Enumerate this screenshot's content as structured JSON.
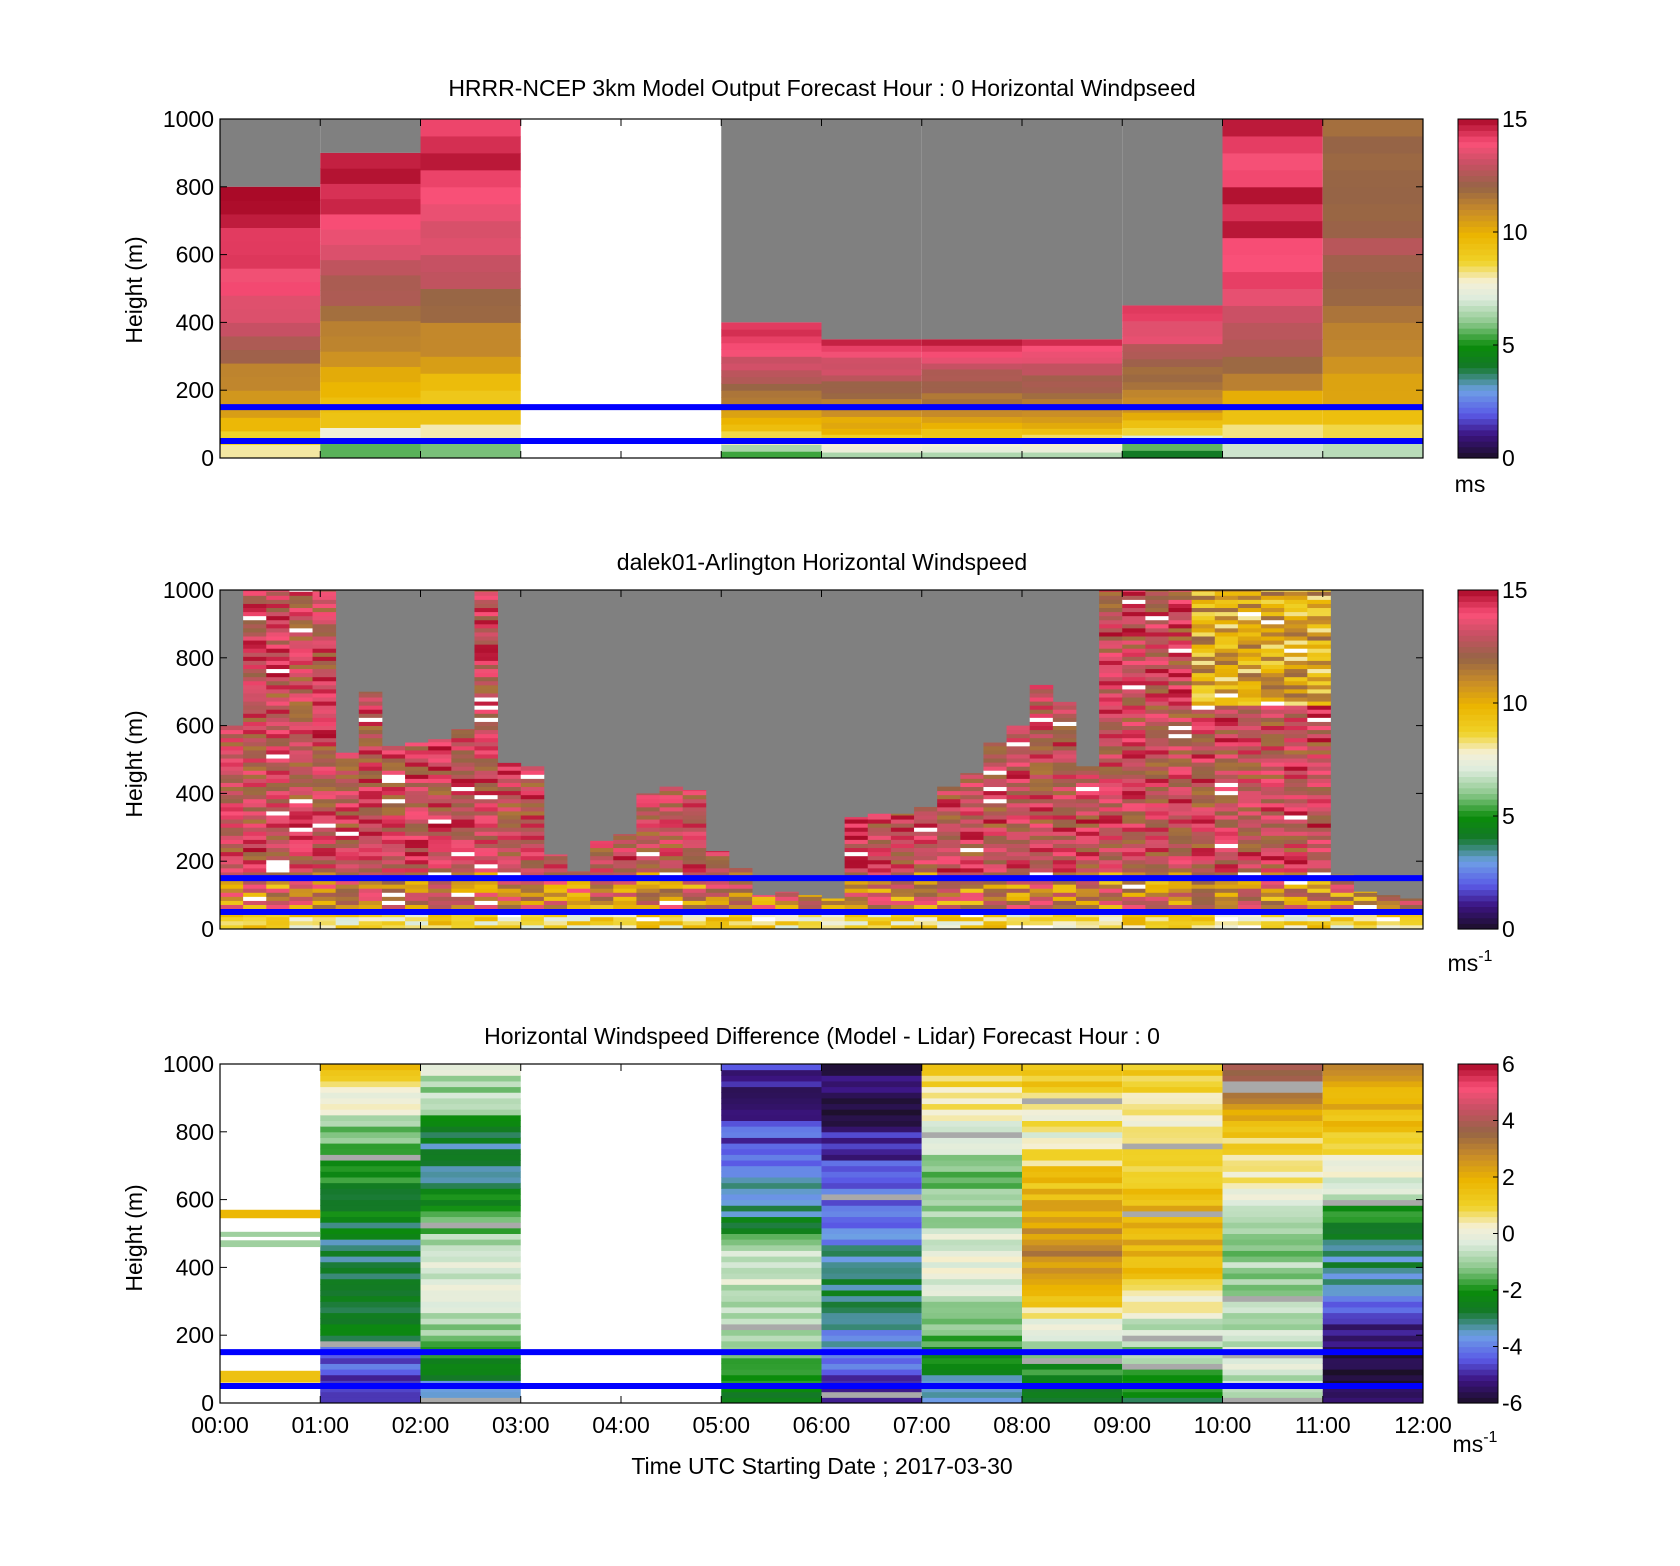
{
  "figure": {
    "x_tick_labels": [
      "00:00",
      "01:00",
      "02:00",
      "03:00",
      "04:00",
      "05:00",
      "06:00",
      "07:00",
      "08:00",
      "09:00",
      "10:00",
      "11:00",
      "12:00"
    ],
    "xlabel": "Time UTC  Starting Date ; 2017-03-30"
  },
  "chart_data": [
    {
      "type": "heatmap",
      "title": "HRRR-NCEP 3km Model Output   Forecast Hour : 0 Horizontal Windpseed",
      "ylabel": "Height (m)",
      "y_ticks": [
        0,
        200,
        400,
        600,
        800,
        1000
      ],
      "ylim": [
        0,
        1000
      ],
      "x_range_hours": [
        0,
        12
      ],
      "colorbar": {
        "range": [
          0,
          15
        ],
        "ticks": [
          0,
          5,
          10,
          15
        ],
        "unit": "ms",
        "unit_sup": ""
      },
      "reference_lines_m": [
        50,
        150
      ],
      "reference_line_color": "#0000ff",
      "missing_color": "#808080",
      "columns_hourly": [
        {
          "start": 0,
          "end": 1,
          "top_m": 800,
          "profile": [
            7.5,
            9.5,
            10.5,
            11.5,
            12.5,
            13.5,
            14.0,
            14.5,
            14.5,
            15.0
          ]
        },
        {
          "start": 1,
          "end": 2,
          "top_m": 900,
          "profile": [
            5.0,
            9.0,
            10.0,
            10.5,
            11.5,
            12.5,
            13.5,
            14.0,
            14.5,
            15.0
          ]
        },
        {
          "start": 2,
          "end": 3,
          "top_m": 1000,
          "profile": [
            5.0,
            9.0,
            9.5,
            11.0,
            12.0,
            13.0,
            13.5,
            14.0,
            14.5,
            14.5
          ]
        },
        {
          "start": 3,
          "end": 5,
          "top_m": null,
          "profile": []
        },
        {
          "start": 5,
          "end": 6,
          "top_m": 400,
          "profile": [
            5.0,
            9.5,
            11.0,
            12.5,
            14.0,
            14.5
          ]
        },
        {
          "start": 6,
          "end": 7,
          "top_m": 350,
          "profile": [
            6.0,
            10.0,
            11.5,
            13.0,
            14.5
          ]
        },
        {
          "start": 7,
          "end": 8,
          "top_m": 350,
          "profile": [
            6.0,
            10.0,
            11.5,
            13.0,
            14.5
          ]
        },
        {
          "start": 8,
          "end": 9,
          "top_m": 350,
          "profile": [
            6.0,
            10.0,
            11.5,
            13.0,
            14.5
          ]
        },
        {
          "start": 9,
          "end": 10,
          "top_m": 450,
          "profile": [
            3.5,
            9.5,
            11.0,
            12.0,
            13.5,
            14.5
          ]
        },
        {
          "start": 10,
          "end": 11,
          "top_m": 1000,
          "profile": [
            6.5,
            9.5,
            11.0,
            12.5,
            13.5,
            14.0,
            14.5,
            14.5,
            14.0,
            14.5
          ]
        },
        {
          "start": 11,
          "end": 12,
          "top_m": 1000,
          "profile": [
            6.0,
            9.5,
            10.5,
            11.0,
            11.5,
            12.5,
            12.5,
            12.0,
            12.0,
            11.5
          ]
        }
      ]
    },
    {
      "type": "heatmap",
      "title": "dalek01-Arlington  Horizontal Windspeed",
      "ylabel": "Height (m)",
      "y_ticks": [
        0,
        200,
        400,
        600,
        800,
        1000
      ],
      "ylim": [
        0,
        1000
      ],
      "x_range_hours": [
        0,
        12
      ],
      "colorbar": {
        "range": [
          0,
          15
        ],
        "ticks": [
          0,
          5,
          10,
          15
        ],
        "unit": "ms",
        "unit_sup": "-1"
      },
      "reference_lines_m": [
        50,
        150
      ],
      "reference_line_color": "#0000ff",
      "missing_color": "#808080",
      "data_top_m": [
        600,
        1000,
        1000,
        1000,
        1000,
        520,
        700,
        540,
        550,
        560,
        590,
        1000,
        490,
        480,
        220,
        170,
        260,
        280,
        400,
        420,
        410,
        230,
        180,
        100,
        110,
        100,
        90,
        330,
        340,
        340,
        360,
        420,
        460,
        550,
        600,
        720,
        670,
        480,
        1000,
        1000,
        1000,
        1000,
        1000,
        1000,
        1000,
        1000,
        1000,
        1000,
        160,
        110,
        100,
        90
      ]
    },
    {
      "type": "heatmap",
      "title": "Horizontal Windspeed Difference (Model - Lidar) Forecast Hour : 0",
      "ylabel": "Height (m)",
      "y_ticks": [
        0,
        200,
        400,
        600,
        800,
        1000
      ],
      "ylim": [
        0,
        1000
      ],
      "x_range_hours": [
        0,
        12
      ],
      "colorbar": {
        "range": [
          -6,
          6
        ],
        "ticks": [
          -6,
          -4,
          -2,
          0,
          2,
          4,
          6
        ],
        "unit": "ms",
        "unit_sup": "-1"
      },
      "reference_lines_m": [
        50,
        150
      ],
      "reference_line_color": "#0000ff",
      "columns_hourly": [
        {
          "start": 0,
          "end": 1,
          "profile": null
        },
        {
          "start": 1,
          "end": 2,
          "profile": [
            -5.0,
            -4.5,
            -2.5,
            -3.0,
            -3.0,
            -2.5,
            -2.0,
            -1.5,
            0.0,
            1.5
          ]
        },
        {
          "start": 2,
          "end": 3,
          "profile": [
            -4.0,
            -2.5,
            -1.0,
            -0.5,
            -0.5,
            -2.0,
            -3.0,
            -3.0,
            -1.0,
            -0.5
          ]
        },
        {
          "start": 3,
          "end": 5,
          "profile": null
        },
        {
          "start": 5,
          "end": 6,
          "profile": [
            -2.5,
            -1.5,
            -0.5,
            -0.5,
            -0.5,
            -3.0,
            -3.5,
            -4.5,
            -5.0,
            -5.0
          ]
        },
        {
          "start": 6,
          "end": 7,
          "profile": [
            -5.5,
            -4.0,
            -3.5,
            -3.0,
            -3.5,
            -4.0,
            -4.5,
            -5.0,
            -5.5,
            -5.5
          ]
        },
        {
          "start": 7,
          "end": 8,
          "profile": [
            -4.0,
            -2.5,
            -1.5,
            -0.5,
            0.0,
            -1.0,
            -1.5,
            -0.5,
            0.5,
            1.0
          ]
        },
        {
          "start": 8,
          "end": 9,
          "profile": [
            -3.0,
            -2.0,
            -0.5,
            2.0,
            3.0,
            2.0,
            1.5,
            0.0,
            1.0,
            1.5
          ]
        },
        {
          "start": 9,
          "end": 10,
          "profile": [
            -2.5,
            -1.5,
            -0.5,
            1.0,
            2.0,
            2.0,
            1.5,
            0.0,
            0.5,
            1.5
          ]
        },
        {
          "start": 10,
          "end": 11,
          "profile": [
            -1.0,
            -0.5,
            -0.5,
            -1.0,
            -1.0,
            -0.5,
            0.5,
            1.0,
            2.5,
            4.0
          ]
        },
        {
          "start": 11,
          "end": 12,
          "profile": [
            -5.5,
            -6.0,
            -5.0,
            -3.5,
            -3.0,
            -2.0,
            0.0,
            1.0,
            2.0,
            2.5
          ]
        }
      ]
    }
  ]
}
